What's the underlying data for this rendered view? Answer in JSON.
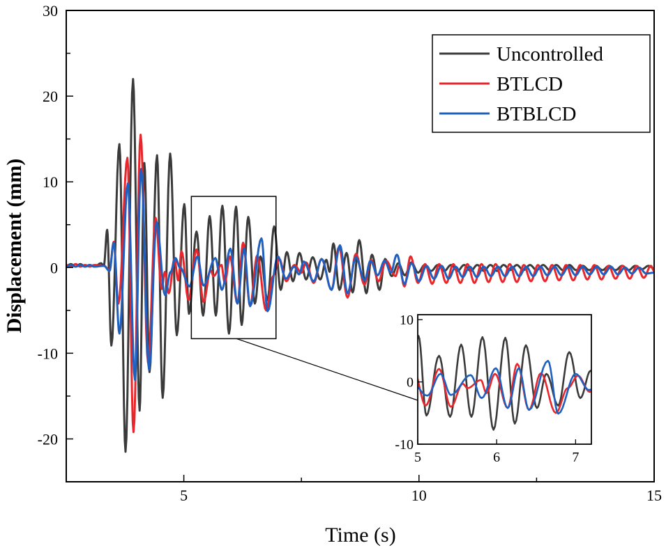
{
  "chart_data": {
    "type": "line",
    "title": "",
    "xlabel": "Time (s)",
    "ylabel": "Displacement (mm)",
    "xlim": [
      2.5,
      15
    ],
    "ylim": [
      -25,
      30
    ],
    "x_ticks": [
      5,
      10,
      15
    ],
    "y_ticks": [
      -20,
      -10,
      0,
      10,
      20,
      30
    ],
    "grid": false,
    "legend_position": "top-right",
    "legend": [
      "Uncontrolled",
      "BTLCD",
      "BTBLCD"
    ],
    "zoom_box": {
      "xlim": [
        5.16,
        6.96
      ],
      "ylim": [
        -8.3,
        8.3
      ]
    },
    "inset": {
      "xlim": [
        5,
        7.2
      ],
      "ylim": [
        -10,
        10.8
      ],
      "x_ticks": [
        5,
        6,
        7
      ],
      "y_ticks": [
        -10,
        0,
        10
      ]
    },
    "series": [
      {
        "name": "Uncontrolled",
        "color": "#3a3a3a",
        "points": [
          [
            2.5,
            0.2
          ],
          [
            2.6,
            0.4
          ],
          [
            2.7,
            0.1
          ],
          [
            2.8,
            0.4
          ],
          [
            2.9,
            0.1
          ],
          [
            3.0,
            0.3
          ],
          [
            3.1,
            0.1
          ],
          [
            3.24,
            0.5
          ],
          [
            3.3,
            0.2
          ],
          [
            3.37,
            4.4
          ],
          [
            3.46,
            -9.1
          ],
          [
            3.63,
            14.4
          ],
          [
            3.76,
            -21.5
          ],
          [
            3.92,
            22.0
          ],
          [
            4.06,
            -16.7
          ],
          [
            4.16,
            12.2
          ],
          [
            4.27,
            -12.2
          ],
          [
            4.43,
            13.1
          ],
          [
            4.55,
            -15.2
          ],
          [
            4.71,
            13.3
          ],
          [
            4.85,
            -7.9
          ],
          [
            5.01,
            7.4
          ],
          [
            5.11,
            -5.4
          ],
          [
            5.27,
            4.2
          ],
          [
            5.41,
            -5.6
          ],
          [
            5.55,
            6.0
          ],
          [
            5.68,
            -5.6
          ],
          [
            5.82,
            7.2
          ],
          [
            5.96,
            -7.7
          ],
          [
            6.11,
            7.1
          ],
          [
            6.23,
            -6.7
          ],
          [
            6.37,
            5.9
          ],
          [
            6.51,
            -4.2
          ],
          [
            6.63,
            1.3
          ],
          [
            6.78,
            -3.8
          ],
          [
            6.92,
            4.8
          ],
          [
            7.06,
            -2.6
          ],
          [
            7.19,
            1.8
          ],
          [
            7.32,
            -1.6
          ],
          [
            7.46,
            1.7
          ],
          [
            7.6,
            -1.4
          ],
          [
            7.74,
            1.2
          ],
          [
            7.9,
            -1.4
          ],
          [
            8.03,
            0.9
          ],
          [
            8.1,
            -0.5
          ],
          [
            8.18,
            2.8
          ],
          [
            8.31,
            -2.6
          ],
          [
            8.46,
            1.7
          ],
          [
            8.59,
            -2.9
          ],
          [
            8.73,
            3.2
          ],
          [
            8.88,
            -3.0
          ],
          [
            9.0,
            1.5
          ],
          [
            9.16,
            -2.6
          ],
          [
            9.28,
            1.0
          ],
          [
            9.42,
            -1.0
          ],
          [
            9.56,
            0.5
          ],
          [
            9.7,
            -0.9
          ],
          [
            9.84,
            0.6
          ],
          [
            9.98,
            -0.6
          ],
          [
            10.12,
            0.3
          ],
          [
            10.26,
            -0.4
          ],
          [
            10.4,
            0.3
          ],
          [
            10.54,
            -0.4
          ],
          [
            10.68,
            0.3
          ],
          [
            10.82,
            -0.4
          ],
          [
            10.96,
            0.3
          ],
          [
            11.1,
            -0.4
          ],
          [
            11.24,
            0.3
          ],
          [
            11.38,
            -0.4
          ],
          [
            11.52,
            0.3
          ],
          [
            11.66,
            -0.4
          ],
          [
            11.8,
            0.3
          ],
          [
            11.94,
            -0.3
          ],
          [
            12.08,
            0.3
          ],
          [
            12.22,
            -0.3
          ],
          [
            12.36,
            0.3
          ],
          [
            12.5,
            -0.3
          ],
          [
            12.64,
            0.3
          ],
          [
            12.78,
            -0.3
          ],
          [
            12.92,
            0.3
          ],
          [
            13.06,
            -0.3
          ],
          [
            13.2,
            0.3
          ],
          [
            13.34,
            -0.3
          ],
          [
            13.48,
            0.2
          ],
          [
            13.62,
            -0.3
          ],
          [
            13.76,
            0.2
          ],
          [
            13.9,
            -0.3
          ],
          [
            14.04,
            0.2
          ],
          [
            14.18,
            -0.3
          ],
          [
            14.32,
            0.2
          ],
          [
            14.46,
            -0.3
          ],
          [
            14.6,
            0.2
          ],
          [
            14.74,
            -0.2
          ],
          [
            14.88,
            0.2
          ],
          [
            15.0,
            -0.1
          ]
        ]
      },
      {
        "name": "BTLCD",
        "color": "#e8262b",
        "points": [
          [
            2.5,
            0.3
          ],
          [
            2.6,
            0.1
          ],
          [
            2.7,
            0.4
          ],
          [
            2.8,
            0.1
          ],
          [
            2.9,
            0.3
          ],
          [
            3.0,
            0.1
          ],
          [
            3.1,
            0.3
          ],
          [
            3.3,
            0.2
          ],
          [
            3.42,
            -0.3
          ],
          [
            3.51,
            3.0
          ],
          [
            3.61,
            -4.2
          ],
          [
            3.8,
            12.8
          ],
          [
            3.93,
            -19.2
          ],
          [
            4.08,
            15.5
          ],
          [
            4.24,
            -11.1
          ],
          [
            4.4,
            5.8
          ],
          [
            4.53,
            -2.5
          ],
          [
            4.6,
            -0.5
          ],
          [
            4.68,
            -3.0
          ],
          [
            4.8,
            1.0
          ],
          [
            4.88,
            -1.5
          ],
          [
            4.95,
            1.9
          ],
          [
            5.1,
            -3.8
          ],
          [
            5.27,
            2.1
          ],
          [
            5.42,
            -4.0
          ],
          [
            5.57,
            -0.3
          ],
          [
            5.63,
            -1.0
          ],
          [
            5.8,
            0.3
          ],
          [
            5.87,
            -1.8
          ],
          [
            5.98,
            1.3
          ],
          [
            6.14,
            -4.2
          ],
          [
            6.26,
            2.9
          ],
          [
            6.41,
            -4.5
          ],
          [
            6.56,
            1.4
          ],
          [
            6.75,
            -5.0
          ],
          [
            6.9,
            -1.0
          ],
          [
            7.03,
            1.0
          ],
          [
            7.18,
            -1.6
          ],
          [
            7.35,
            0.3
          ],
          [
            7.5,
            -0.6
          ],
          [
            7.6,
            0.6
          ],
          [
            7.76,
            -1.8
          ],
          [
            7.93,
            1.0
          ],
          [
            8.14,
            -2.6
          ],
          [
            8.3,
            2.4
          ],
          [
            8.48,
            -3.5
          ],
          [
            8.66,
            1.6
          ],
          [
            8.84,
            -2.0
          ],
          [
            8.98,
            0.9
          ],
          [
            9.14,
            -1.6
          ],
          [
            9.3,
            0.8
          ],
          [
            9.5,
            -1.0
          ],
          [
            9.58,
            0.2
          ],
          [
            9.69,
            -2.2
          ],
          [
            9.82,
            1.3
          ],
          [
            9.98,
            -1.8
          ],
          [
            10.13,
            0.4
          ],
          [
            10.28,
            -1.9
          ],
          [
            10.43,
            0.4
          ],
          [
            10.58,
            -1.8
          ],
          [
            10.73,
            0.4
          ],
          [
            10.88,
            -1.8
          ],
          [
            11.03,
            0.4
          ],
          [
            11.18,
            -1.8
          ],
          [
            11.33,
            0.4
          ],
          [
            11.48,
            -1.7
          ],
          [
            11.63,
            0.4
          ],
          [
            11.78,
            -1.7
          ],
          [
            11.93,
            0.4
          ],
          [
            12.08,
            -1.7
          ],
          [
            12.23,
            0.3
          ],
          [
            12.38,
            -1.6
          ],
          [
            12.53,
            0.3
          ],
          [
            12.68,
            -1.6
          ],
          [
            12.83,
            0.3
          ],
          [
            12.98,
            -1.5
          ],
          [
            13.13,
            0.3
          ],
          [
            13.28,
            -1.5
          ],
          [
            13.43,
            0.3
          ],
          [
            13.58,
            -1.4
          ],
          [
            13.73,
            0.3
          ],
          [
            13.88,
            -1.4
          ],
          [
            14.03,
            0.2
          ],
          [
            14.18,
            -1.3
          ],
          [
            14.33,
            0.2
          ],
          [
            14.48,
            -1.3
          ],
          [
            14.63,
            0.2
          ],
          [
            14.78,
            -1.2
          ],
          [
            14.93,
            0.2
          ],
          [
            15.0,
            -0.4
          ]
        ]
      },
      {
        "name": "BTBLCD",
        "color": "#1f5fbf",
        "points": [
          [
            2.5,
            0.1
          ],
          [
            2.6,
            0.3
          ],
          [
            2.7,
            0.1
          ],
          [
            2.8,
            0.3
          ],
          [
            2.9,
            0.1
          ],
          [
            3.0,
            0.3
          ],
          [
            3.1,
            0.1
          ],
          [
            3.3,
            0.2
          ],
          [
            3.42,
            -0.4
          ],
          [
            3.51,
            2.9
          ],
          [
            3.63,
            -7.7
          ],
          [
            3.81,
            9.8
          ],
          [
            3.96,
            -13.1
          ],
          [
            4.09,
            11.5
          ],
          [
            4.26,
            -11.9
          ],
          [
            4.42,
            5.3
          ],
          [
            4.6,
            -3.2
          ],
          [
            4.72,
            -0.5
          ],
          [
            4.82,
            1.1
          ],
          [
            4.92,
            0.0
          ],
          [
            5.12,
            -2.2
          ],
          [
            5.29,
            1.3
          ],
          [
            5.42,
            -2.1
          ],
          [
            5.67,
            1.1
          ],
          [
            5.81,
            -2.6
          ],
          [
            5.99,
            2.2
          ],
          [
            6.14,
            -4.2
          ],
          [
            6.28,
            2.2
          ],
          [
            6.41,
            -4.5
          ],
          [
            6.65,
            3.4
          ],
          [
            6.78,
            -5.1
          ],
          [
            7.0,
            1.3
          ],
          [
            7.17,
            -1.3
          ],
          [
            7.35,
            0.1
          ],
          [
            7.45,
            -0.8
          ],
          [
            7.55,
            0.7
          ],
          [
            7.76,
            -1.6
          ],
          [
            7.93,
            1.0
          ],
          [
            8.14,
            -2.6
          ],
          [
            8.32,
            2.6
          ],
          [
            8.48,
            -3.0
          ],
          [
            8.66,
            1.2
          ],
          [
            8.84,
            -1.5
          ],
          [
            8.97,
            0.8
          ],
          [
            9.12,
            -0.9
          ],
          [
            9.27,
            0.8
          ],
          [
            9.4,
            -0.6
          ],
          [
            9.53,
            1.5
          ],
          [
            9.69,
            -1.9
          ],
          [
            9.84,
            0.5
          ],
          [
            10.0,
            -1.6
          ],
          [
            10.16,
            0.2
          ],
          [
            10.32,
            -1.3
          ],
          [
            10.48,
            0.2
          ],
          [
            10.63,
            -1.3
          ],
          [
            10.78,
            0.1
          ],
          [
            10.93,
            -1.1
          ],
          [
            11.08,
            0.1
          ],
          [
            11.23,
            -1.1
          ],
          [
            11.38,
            0.1
          ],
          [
            11.53,
            -1.0
          ],
          [
            11.68,
            0.1
          ],
          [
            11.83,
            -1.0
          ],
          [
            11.98,
            0.1
          ],
          [
            12.13,
            -1.0
          ],
          [
            12.28,
            0.1
          ],
          [
            12.43,
            -1.0
          ],
          [
            12.58,
            0.1
          ],
          [
            12.73,
            -0.9
          ],
          [
            12.88,
            0.1
          ],
          [
            13.03,
            -0.9
          ],
          [
            13.18,
            0.1
          ],
          [
            13.33,
            -0.9
          ],
          [
            13.48,
            0.1
          ],
          [
            13.63,
            -0.8
          ],
          [
            13.78,
            0.1
          ],
          [
            13.93,
            -0.8
          ],
          [
            14.08,
            0.1
          ],
          [
            14.23,
            -0.8
          ],
          [
            14.38,
            0.0
          ],
          [
            14.53,
            -0.7
          ],
          [
            14.68,
            0.0
          ],
          [
            14.83,
            -0.7
          ],
          [
            15.0,
            -0.6
          ]
        ]
      }
    ]
  }
}
